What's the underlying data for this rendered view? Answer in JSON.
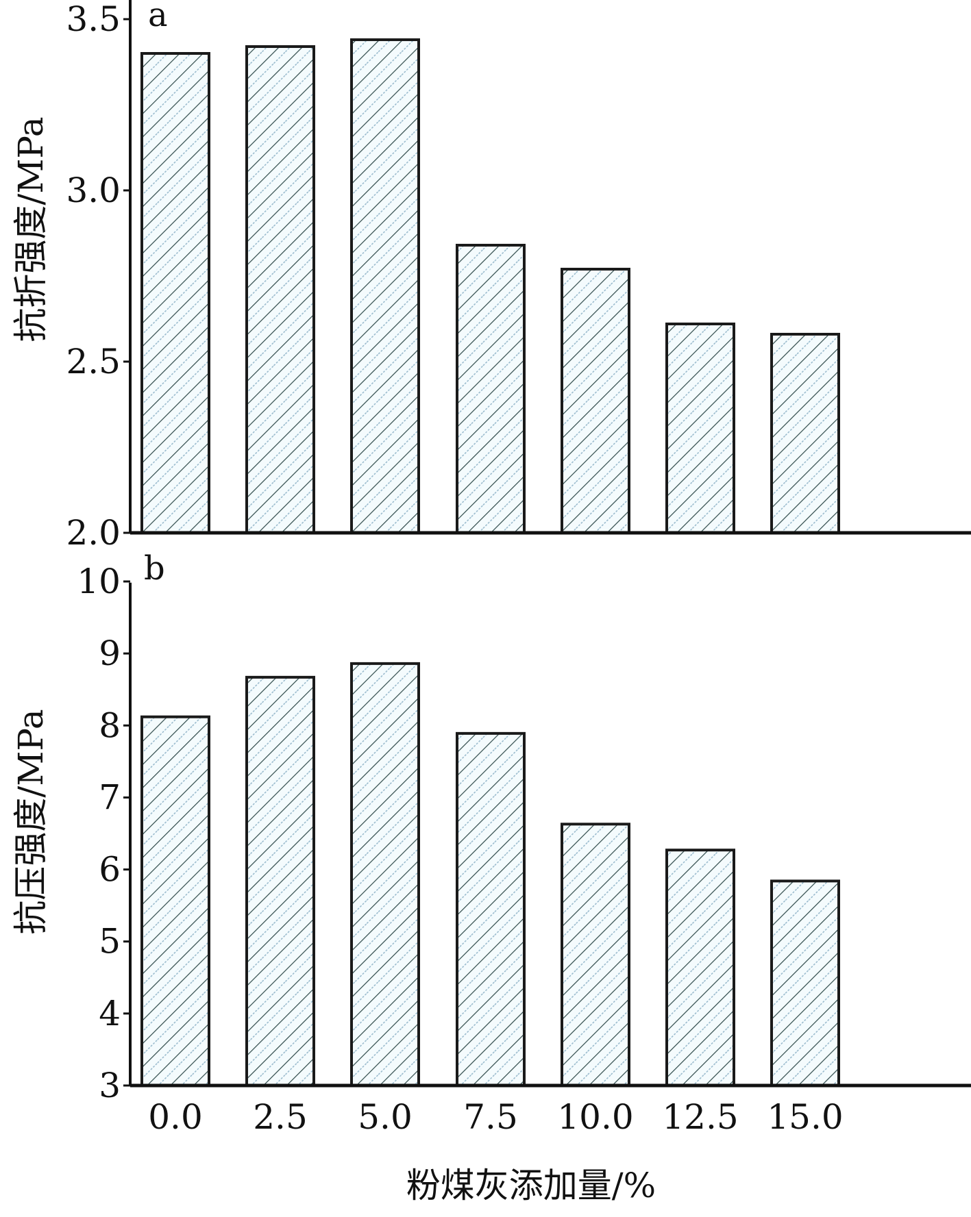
{
  "chart_data": [
    {
      "type": "bar",
      "panel_label": "a",
      "title": "",
      "xlabel": "",
      "ylabel": "抗折强度/MPa",
      "categories": [
        "0.0",
        "2.5",
        "5.0",
        "7.5",
        "10.0",
        "12.5",
        "15.0"
      ],
      "values": [
        3.4,
        3.42,
        3.44,
        2.84,
        2.77,
        2.61,
        2.58
      ],
      "ylim": [
        2.0,
        3.5
      ],
      "yticks": [
        2.0,
        2.5,
        3.0,
        3.5
      ],
      "ytick_labels": [
        "2.0",
        "2.5",
        "3.0",
        "3.5"
      ],
      "grid": false,
      "bar_fill": "hatched"
    },
    {
      "type": "bar",
      "panel_label": "b",
      "title": "",
      "xlabel": "粉煤灰添加量/%",
      "ylabel": "抗压强度/MPa",
      "categories": [
        "0.0",
        "2.5",
        "5.0",
        "7.5",
        "10.0",
        "12.5",
        "15.0"
      ],
      "values": [
        8.12,
        8.67,
        8.86,
        7.89,
        6.63,
        6.27,
        5.84
      ],
      "ylim": [
        3,
        10.2
      ],
      "yticks": [
        3,
        4,
        5,
        6,
        7,
        8,
        9,
        10
      ],
      "ytick_labels": [
        "3",
        "4",
        "5",
        "6",
        "7",
        "8",
        "9",
        "10"
      ],
      "grid": false,
      "bar_fill": "hatched"
    }
  ],
  "colors": {
    "bar_outline": "#1a1a1a",
    "bar_background": "#f4fbfd",
    "hatch_dark": "#2f4a4a",
    "hatch_light": "#8fb3c8",
    "axis": "#111111"
  }
}
